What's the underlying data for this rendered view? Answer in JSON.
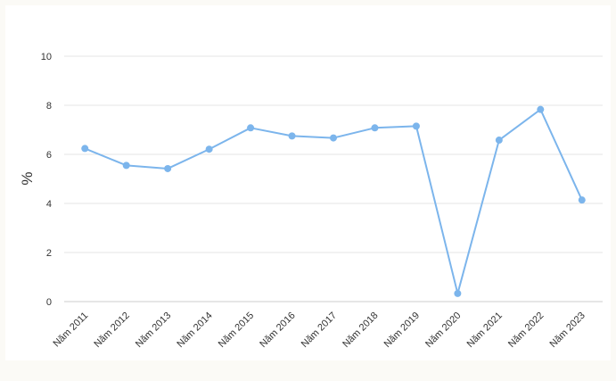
{
  "chart_data": {
    "type": "line",
    "title": "",
    "xlabel": "",
    "ylabel": "%",
    "ylim": [
      0,
      10
    ],
    "yticks": [
      "0",
      "2",
      "4",
      "6",
      "8",
      "10"
    ],
    "grid": true,
    "legend": "none",
    "categories": [
      "Năm 2011",
      "Năm 2012",
      "Năm 2013",
      "Năm 2014",
      "Năm 2015",
      "Năm 2016",
      "Năm 2017",
      "Năm 2018",
      "Năm 2019",
      "Năm 2020",
      "Năm 2021",
      "Năm 2022",
      "Năm 2023"
    ],
    "series": [
      {
        "values": [
          6.24,
          5.55,
          5.42,
          6.21,
          7.08,
          6.75,
          6.67,
          7.08,
          7.15,
          0.33,
          6.58,
          7.83,
          4.14
        ],
        "color": "#7cb5ec"
      }
    ]
  }
}
